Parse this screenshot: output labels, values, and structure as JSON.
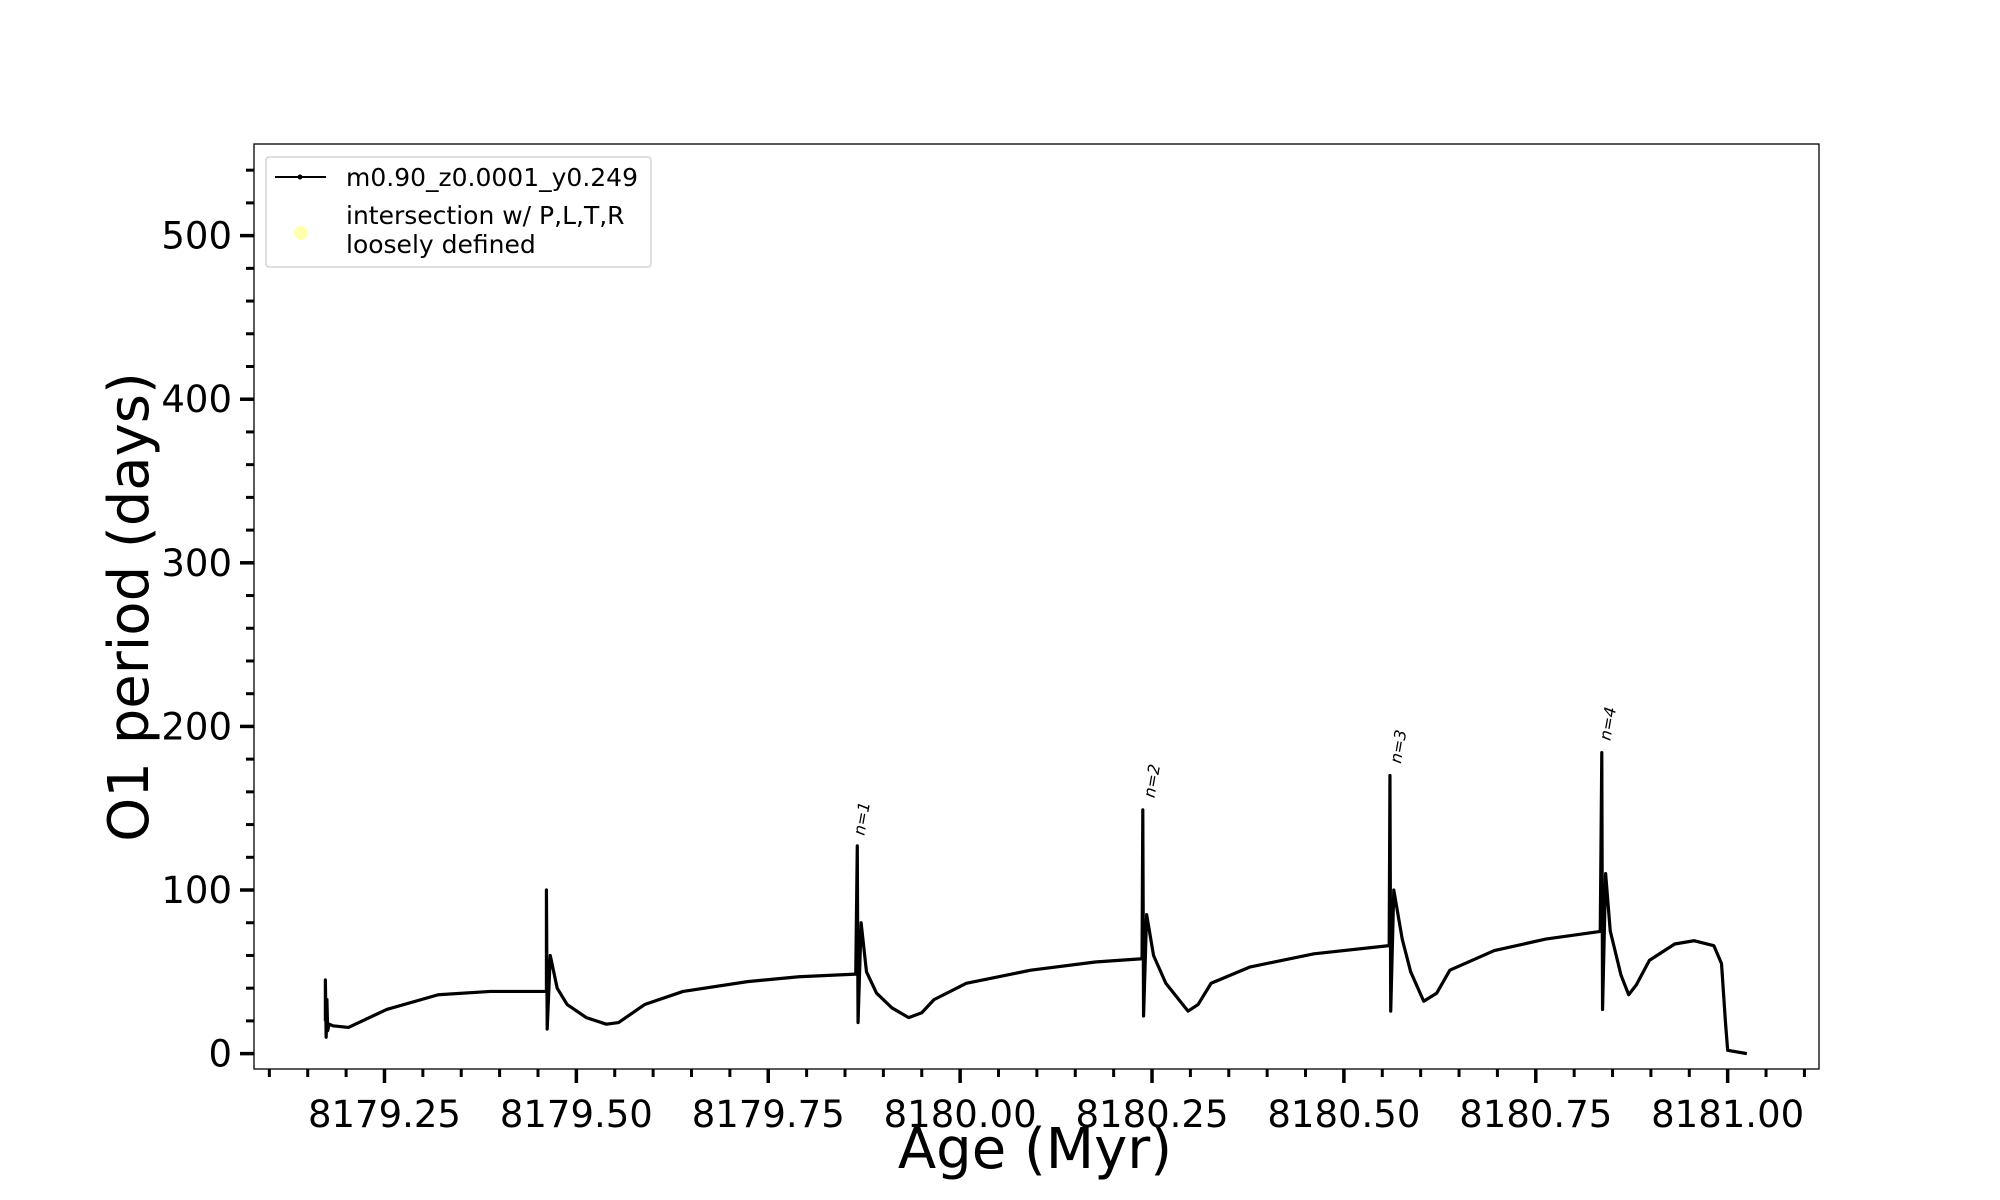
{
  "chart_data": {
    "type": "line",
    "x_label": "Age (Myr)",
    "y_label": "O1 period (days)",
    "xlim": [
      8179.08,
      8181.119
    ],
    "ylim": [
      -9.4,
      556
    ],
    "xticks": [
      8179.25,
      {
        "value": 8179.5,
        "label": "8179.50"
      },
      8179.75,
      {
        "value": 8180,
        "label": "8180.00"
      },
      8180.25,
      {
        "value": 8180.5,
        "label": "8180.50"
      },
      8180.75,
      {
        "value": 8181,
        "label": "8181.00"
      }
    ],
    "xminorticks": [
      8179.1,
      8179.15,
      8179.2,
      8179.3,
      8179.35,
      8179.4,
      8179.45,
      8179.55,
      8179.6,
      8179.65,
      8179.7,
      8179.8,
      8179.85,
      8179.9,
      8179.95,
      8180.05,
      8180.1,
      8180.15,
      8180.2,
      8180.3,
      8180.35,
      8180.4,
      8180.45,
      8180.55,
      8180.6,
      8180.65,
      8180.7,
      8180.8,
      8180.85,
      8180.9,
      8180.95,
      8181.05,
      8181.1
    ],
    "yticks": [
      0,
      100,
      200,
      300,
      400,
      500
    ],
    "yminorticks": [
      20,
      40,
      60,
      80,
      120,
      140,
      160,
      180,
      220,
      240,
      260,
      280,
      320,
      340,
      360,
      380,
      420,
      440,
      460,
      480,
      520,
      540
    ],
    "legend": "upper left",
    "series": [
      {
        "name": "m0.90_z0.0001_y0.249",
        "color": "#000000",
        "x": [
          8179.173,
          8179.173,
          8179.174,
          8179.175,
          8179.176,
          8179.178,
          8179.183,
          8179.203,
          8179.253,
          8179.32,
          8179.388,
          8179.461,
          8179.461,
          8179.462,
          8179.466,
          8179.475,
          8179.488,
          8179.513,
          8179.539,
          8179.555,
          8179.589,
          8179.639,
          8179.723,
          8179.79,
          8179.864,
          8179.866,
          8179.867,
          8179.871,
          8179.878,
          8179.891,
          8179.911,
          8179.933,
          8179.95,
          8179.966,
          8180.008,
          8180.092,
          8180.176,
          8180.237,
          8180.238,
          8180.239,
          8180.243,
          8180.252,
          8180.268,
          8180.29,
          8180.297,
          8180.31,
          8180.327,
          8180.378,
          8180.461,
          8180.559,
          8180.56,
          8180.561,
          8180.565,
          8180.576,
          8180.587,
          8180.604,
          8180.621,
          8180.638,
          8180.696,
          8180.763,
          8180.834,
          8180.836,
          8180.837,
          8180.841,
          8180.847,
          8180.861,
          8180.871,
          8180.881,
          8180.898,
          8180.931,
          8180.956,
          8180.982,
          8180.992,
          8180.997,
          8181.0,
          8181.025
        ],
        "values": [
          20,
          45,
          10,
          33,
          14,
          18,
          17,
          16,
          27,
          36,
          38,
          38,
          100,
          15,
          60,
          40,
          30,
          22,
          18,
          19,
          30,
          38,
          44,
          47,
          48.6,
          127,
          19,
          80,
          50,
          37,
          28,
          22,
          25,
          33,
          43,
          51,
          56,
          58,
          149,
          23,
          85,
          60,
          43,
          30,
          26,
          30,
          43,
          53,
          61,
          66,
          170,
          26,
          100,
          70,
          50,
          32,
          37,
          51,
          63,
          70,
          74.7,
          184,
          27,
          110,
          75,
          48,
          36,
          42,
          57,
          67,
          69,
          66,
          55,
          20,
          2,
          0
        ]
      },
      {
        "name": "intersection w/ P,L,T,R\nloosely defined",
        "color": "#ffffb0",
        "x": [],
        "values": []
      }
    ],
    "annotations": [
      {
        "text": "n=1",
        "x": 8179.875,
        "y": 133
      },
      {
        "text": "n=2",
        "x": 8180.253,
        "y": 156
      },
      {
        "text": "n=3",
        "x": 8180.574,
        "y": 177
      },
      {
        "text": "n=4",
        "x": 8180.847,
        "y": 191
      }
    ]
  }
}
